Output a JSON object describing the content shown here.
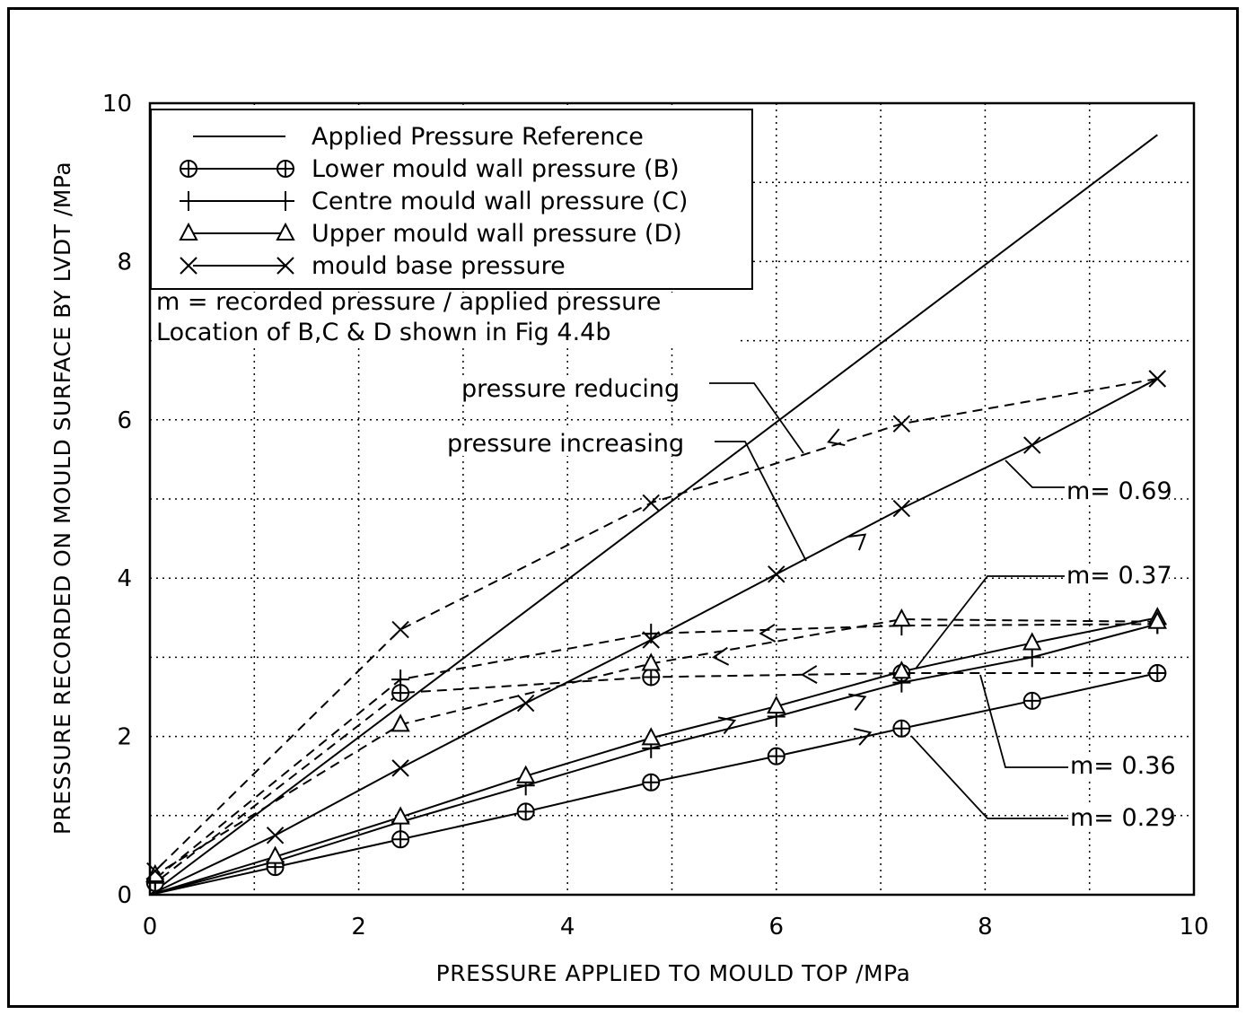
{
  "chart_data": {
    "type": "line",
    "xlabel": "PRESSURE APPLIED TO MOULD TOP  /MPa",
    "ylabel": "PRESSURE RECORDED ON MOULD SURFACE BY LVDT  /MPa",
    "xlim": [
      0,
      10
    ],
    "ylim": [
      0,
      10
    ],
    "xticks": [
      "0",
      "2",
      "4",
      "6",
      "8",
      "10"
    ],
    "yticks": [
      "0",
      "2",
      "4",
      "6",
      "8",
      "10"
    ],
    "grid": true,
    "legend_position": "top-left",
    "legend": [
      {
        "label": "Applied Pressure Reference",
        "marker": "none"
      },
      {
        "label": "Lower mould wall pressure (B)",
        "marker": "circle-plus"
      },
      {
        "label": "Centre mould wall pressure (C)",
        "marker": "plus"
      },
      {
        "label": "Upper mould wall pressure (D)",
        "marker": "triangle"
      },
      {
        "label": "mould base pressure",
        "marker": "x"
      }
    ],
    "notes": [
      "m =  recorded pressure / applied pressure",
      "Location of B,C & D shown in Fig 4.4b"
    ],
    "annotations": [
      {
        "text": "pressure reducing"
      },
      {
        "text": "pressure increasing"
      },
      {
        "text": "m= 0.69"
      },
      {
        "text": "m= 0.37"
      },
      {
        "text": "m= 0.36"
      },
      {
        "text": "m= 0.29"
      }
    ],
    "series": [
      {
        "name": "Applied Pressure Reference",
        "marker": "none",
        "style": "solid",
        "x": [
          0,
          9.65
        ],
        "y": [
          0,
          9.6
        ]
      },
      {
        "name": "Lower mould wall pressure (B)",
        "marker": "circle-plus",
        "style": "solid",
        "x": [
          0,
          1.2,
          2.4,
          3.6,
          4.8,
          6.0,
          7.2,
          8.45,
          9.65
        ],
        "y": [
          0,
          0.35,
          0.7,
          1.05,
          1.42,
          1.75,
          2.1,
          2.45,
          2.8
        ]
      },
      {
        "name": "Lower mould wall pressure (B) - reducing",
        "marker": "circle-plus",
        "style": "dashed",
        "x": [
          9.65,
          7.2,
          4.8,
          2.4,
          0.05
        ],
        "y": [
          2.8,
          2.8,
          2.75,
          2.55,
          0.15
        ]
      },
      {
        "name": "Centre mould wall pressure (C)",
        "marker": "plus",
        "style": "solid",
        "x": [
          0,
          1.2,
          2.4,
          3.6,
          4.8,
          6.0,
          7.2,
          8.45,
          9.65
        ],
        "y": [
          0,
          0.42,
          0.92,
          1.38,
          1.85,
          2.25,
          2.68,
          3.0,
          3.42
        ]
      },
      {
        "name": "Centre mould wall pressure (C) - reducing",
        "marker": "plus",
        "style": "dashed",
        "x": [
          9.65,
          7.2,
          4.8,
          2.4,
          0.05
        ],
        "y": [
          3.42,
          3.4,
          3.3,
          2.72,
          0.2
        ]
      },
      {
        "name": "Upper mould wall pressure (D)",
        "marker": "triangle",
        "style": "solid",
        "x": [
          0,
          1.2,
          2.4,
          3.6,
          4.8,
          6.0,
          7.2,
          8.45,
          9.65
        ],
        "y": [
          0,
          0.48,
          0.98,
          1.5,
          1.98,
          2.38,
          2.82,
          3.18,
          3.5
        ]
      },
      {
        "name": "Upper mould wall pressure (D) - reducing",
        "marker": "triangle",
        "style": "dashed",
        "x": [
          9.65,
          7.2,
          4.8,
          2.4,
          0.05
        ],
        "y": [
          3.45,
          3.48,
          2.92,
          2.15,
          0.25
        ]
      },
      {
        "name": "mould base pressure",
        "marker": "x",
        "style": "solid",
        "x": [
          0,
          1.2,
          2.4,
          3.6,
          4.8,
          6.0,
          7.2,
          8.45,
          9.65
        ],
        "y": [
          0,
          0.75,
          1.6,
          2.42,
          3.22,
          4.05,
          4.88,
          5.68,
          6.52
        ]
      },
      {
        "name": "mould base pressure - reducing",
        "marker": "x",
        "style": "dashed",
        "x": [
          9.65,
          7.2,
          4.8,
          2.4,
          0.05
        ],
        "y": [
          6.52,
          5.95,
          4.95,
          3.35,
          0.3
        ]
      }
    ]
  }
}
